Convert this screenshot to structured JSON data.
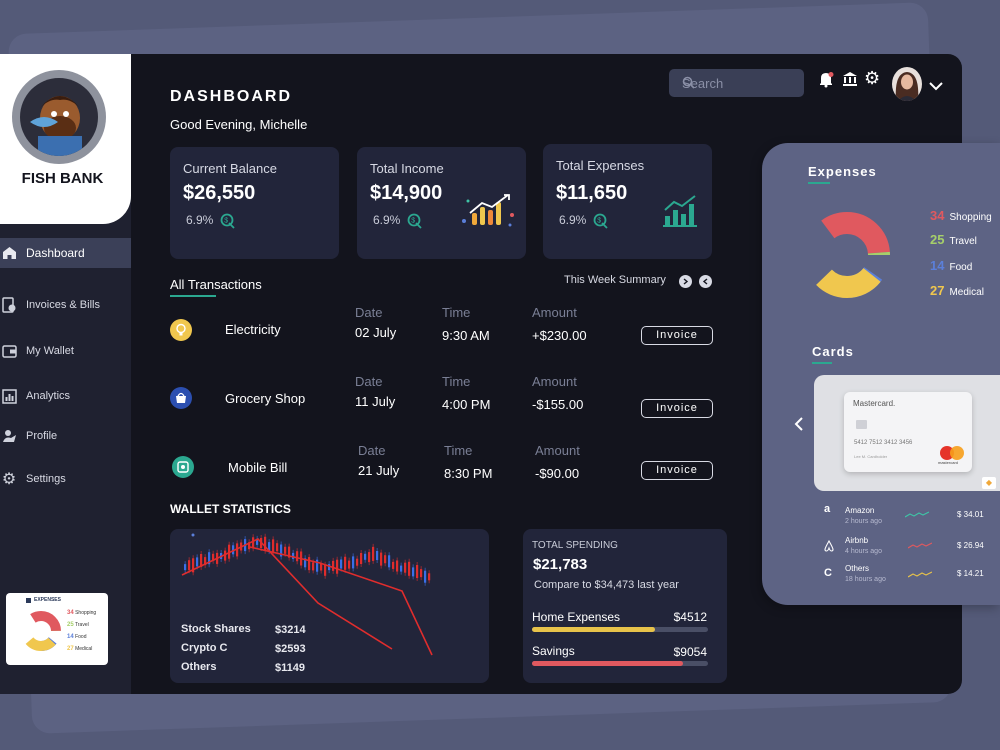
{
  "app": {
    "brand": "FISH BANK"
  },
  "sidebar": {
    "items": [
      {
        "label": "Dashboard",
        "icon": "home-icon"
      },
      {
        "label": "Invoices & Bills",
        "icon": "invoice-icon"
      },
      {
        "label": "My Wallet",
        "icon": "wallet-icon"
      },
      {
        "label": "Analytics",
        "icon": "analytics-icon"
      },
      {
        "label": "Profile",
        "icon": "profile-icon"
      },
      {
        "label": "Settings",
        "icon": "settings-icon"
      }
    ],
    "mini_widget": {
      "title": "EXPENSES",
      "rows": [
        {
          "value": "34",
          "label": "Shopping"
        },
        {
          "value": "25",
          "label": "Travel"
        },
        {
          "value": "14",
          "label": "Food"
        },
        {
          "value": "27",
          "label": "Medical"
        }
      ]
    }
  },
  "header": {
    "title": "DASHBOARD",
    "greeting": "Good Evening, Michelle",
    "search_placeholder": "Search"
  },
  "cards": [
    {
      "label": "Current Balance",
      "value": "$26,550",
      "pct": "6.9%"
    },
    {
      "label": "Total Income",
      "value": "$14,900",
      "pct": "6.9%"
    },
    {
      "label": "Total Expenses",
      "value": "$11,650",
      "pct": "6.9%"
    }
  ],
  "transactions": {
    "title": "All Transactions",
    "summary_label": "This Week Summary",
    "col_date": "Date",
    "col_time": "Time",
    "col_amount": "Amount",
    "invoice_label": "Invoice",
    "rows": [
      {
        "name": "Electricity",
        "date": "02 July",
        "time": "9:30 AM",
        "amount": "+$230.00"
      },
      {
        "name": "Grocery Shop",
        "date": "11 July",
        "time": "4:00 PM",
        "amount": "-$155.00"
      },
      {
        "name": "Mobile Bill",
        "date": "21 July",
        "time": "8:30 PM",
        "amount": "-$90.00"
      }
    ]
  },
  "wallet": {
    "title": "WALLET STATISTICS",
    "stats": [
      {
        "label": "Stock Shares",
        "value": "$3214"
      },
      {
        "label": "Crypto C",
        "value": "$2593"
      },
      {
        "label": "Others",
        "value": "$1149"
      }
    ]
  },
  "spending": {
    "label": "TOTAL SPENDING",
    "value": "$21,783",
    "compare": "Compare to $34,473 last year",
    "bars": [
      {
        "label": "Home Expenses",
        "value": "$4512",
        "fill": 0.82,
        "color": "#e8c34a"
      },
      {
        "label": "Savings",
        "value": "$9054",
        "fill": 0.86,
        "color": "#e0595f"
      }
    ]
  },
  "expenses_panel": {
    "title": "Expenses",
    "items": [
      {
        "value": "34",
        "label": "Shopping",
        "color": "#e0595f",
        "share": 34
      },
      {
        "value": "25",
        "label": "Travel",
        "color": "#a6cf6a",
        "share": 25
      },
      {
        "value": "14",
        "label": "Food",
        "color": "#5b7fd9",
        "share": 14
      },
      {
        "value": "27",
        "label": "Medical",
        "color": "#f0c74e",
        "share": 27
      }
    ]
  },
  "cards_panel": {
    "title": "Cards",
    "card_brand": "Mastercard.",
    "card_number": "5412 7512 3412 3456",
    "card_holder": "Lee M. Cardholder",
    "card_logo_text": "mastercard",
    "recent": [
      {
        "name": "Amazon",
        "time": "2 hours ago",
        "amount": "$ 34.01",
        "color": "#3fc4a6"
      },
      {
        "name": "Airbnb",
        "time": "4 hours ago",
        "amount": "$ 26.94",
        "color": "#e0595f"
      },
      {
        "name": "Others",
        "time": "18 hours ago",
        "amount": "$ 14.21",
        "color": "#e8c34a"
      }
    ]
  }
}
